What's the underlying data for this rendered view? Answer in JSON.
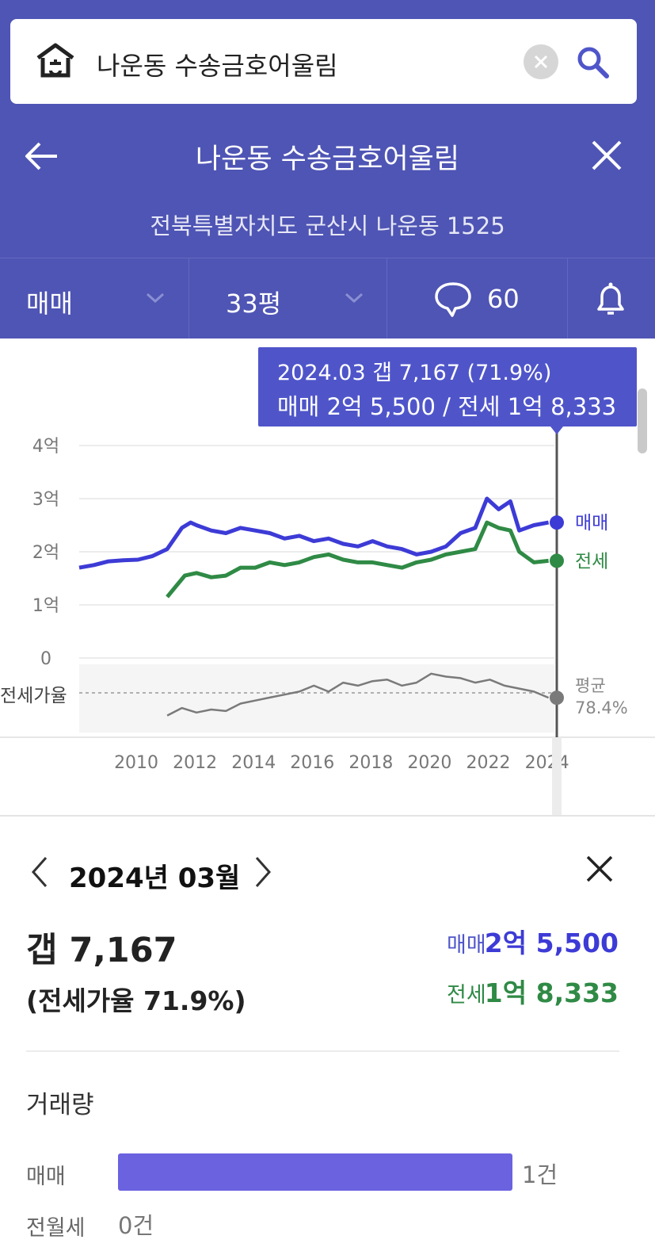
{
  "search": {
    "query": "나운동 수송금호어울림"
  },
  "header": {
    "title": "나운동 수송금호어울림",
    "address": "전북특별자치도 군산시 나운동 1525"
  },
  "filters": {
    "trade_type": "매매",
    "area": "33평",
    "comment_count": "60"
  },
  "tooltip": {
    "line1": "2024.03  갭 7,167 (71.9%)",
    "line2": "매매 2억 5,500 / 전세 1억 8,333"
  },
  "chart_data": {
    "type": "line",
    "x_ticks": [
      "2010",
      "2012",
      "2014",
      "2016",
      "2018",
      "2020",
      "2022",
      "2024"
    ],
    "y_ticks": [
      "4억",
      "3억",
      "2억",
      "1억",
      "0"
    ],
    "ylim": [
      0,
      4
    ],
    "ratio_label": "전세가율",
    "average_label": "평균",
    "average_value": "78.4%",
    "series": [
      {
        "name": "매매",
        "color": "#3d3bd6",
        "x": [
          2008.0,
          2008.5,
          2009.0,
          2009.5,
          2010.0,
          2010.5,
          2011.0,
          2011.5,
          2011.8,
          2012.0,
          2012.5,
          2013.0,
          2013.5,
          2014.0,
          2014.5,
          2015.0,
          2015.5,
          2016.0,
          2016.5,
          2017.0,
          2017.5,
          2018.0,
          2018.5,
          2019.0,
          2019.5,
          2020.0,
          2020.5,
          2021.0,
          2021.5,
          2021.9,
          2022.3,
          2022.7,
          2023.0,
          2023.5,
          2024.0
        ],
        "y": [
          1.7,
          1.75,
          1.82,
          1.84,
          1.85,
          1.92,
          2.05,
          2.45,
          2.55,
          2.5,
          2.4,
          2.35,
          2.45,
          2.4,
          2.35,
          2.25,
          2.3,
          2.2,
          2.25,
          2.15,
          2.1,
          2.2,
          2.1,
          2.05,
          1.95,
          2.0,
          2.1,
          2.35,
          2.45,
          3.0,
          2.8,
          2.95,
          2.4,
          2.5,
          2.55
        ]
      },
      {
        "name": "전세",
        "color": "#2f8a45",
        "x": [
          2011.0,
          2011.3,
          2011.6,
          2012.0,
          2012.5,
          2013.0,
          2013.5,
          2014.0,
          2014.5,
          2015.0,
          2015.5,
          2016.0,
          2016.5,
          2017.0,
          2017.5,
          2018.0,
          2018.5,
          2019.0,
          2019.5,
          2020.0,
          2020.5,
          2021.0,
          2021.5,
          2021.9,
          2022.3,
          2022.7,
          2023.0,
          2023.5,
          2024.0
        ],
        "y": [
          1.15,
          1.35,
          1.55,
          1.6,
          1.52,
          1.55,
          1.7,
          1.7,
          1.8,
          1.75,
          1.8,
          1.9,
          1.95,
          1.85,
          1.8,
          1.8,
          1.75,
          1.7,
          1.8,
          1.85,
          1.95,
          2.0,
          2.05,
          2.55,
          2.45,
          2.4,
          2.0,
          1.8,
          1.83
        ]
      },
      {
        "name": "전세가율",
        "color": "#7a7a7a",
        "x": [
          2011.0,
          2011.5,
          2012.0,
          2012.5,
          2013.0,
          2013.5,
          2014.0,
          2014.5,
          2015.0,
          2015.5,
          2016.0,
          2016.5,
          2017.0,
          2017.5,
          2018.0,
          2018.5,
          2019.0,
          2019.5,
          2020.0,
          2020.5,
          2021.0,
          2021.5,
          2022.0,
          2022.5,
          2023.0,
          2023.5,
          2024.0
        ],
        "y": [
          60,
          65,
          62,
          64,
          63,
          68,
          70,
          72,
          74,
          76,
          80,
          76,
          82,
          80,
          83,
          84,
          80,
          82,
          88,
          86,
          85,
          82,
          84,
          80,
          78,
          76,
          71.9
        ]
      }
    ]
  },
  "detail": {
    "month": "2024년 03월",
    "gap": "갭 7,167",
    "ratio": "(전세가율 71.9%)",
    "sale_label": "매매",
    "sale_value": "2억 5,500",
    "jeonse_label": "전세",
    "jeonse_value": "1억 8,333",
    "volume_title": "거래량",
    "volume": [
      {
        "label": "매매",
        "count": "1건"
      },
      {
        "label": "전월세",
        "count": "0건"
      }
    ]
  },
  "colors": {
    "header_bg": "#4f55b4",
    "sale": "#3d3bd6",
    "jeonse": "#2f8a45",
    "ratio": "#7a7a7a"
  }
}
